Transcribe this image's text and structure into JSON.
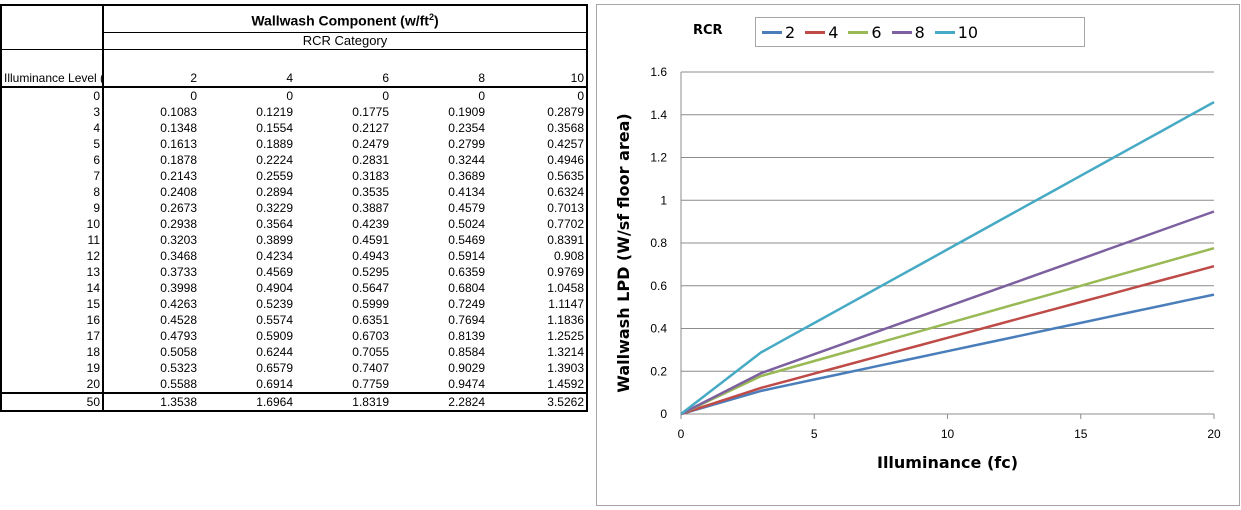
{
  "table": {
    "title": "Wallwash Component (w/ft",
    "title_sup": "2",
    "title_close": ")",
    "subtitle": "RCR Category",
    "level_header": "Illuminance Level (fc)",
    "columns": [
      "2",
      "4",
      "6",
      "8",
      "10"
    ],
    "rows": [
      {
        "level": "0",
        "values": [
          "0",
          "0",
          "0",
          "0",
          "0"
        ]
      },
      {
        "level": "3",
        "values": [
          "0.1083",
          "0.1219",
          "0.1775",
          "0.1909",
          "0.2879"
        ]
      },
      {
        "level": "4",
        "values": [
          "0.1348",
          "0.1554",
          "0.2127",
          "0.2354",
          "0.3568"
        ]
      },
      {
        "level": "5",
        "values": [
          "0.1613",
          "0.1889",
          "0.2479",
          "0.2799",
          "0.4257"
        ]
      },
      {
        "level": "6",
        "values": [
          "0.1878",
          "0.2224",
          "0.2831",
          "0.3244",
          "0.4946"
        ]
      },
      {
        "level": "7",
        "values": [
          "0.2143",
          "0.2559",
          "0.3183",
          "0.3689",
          "0.5635"
        ]
      },
      {
        "level": "8",
        "values": [
          "0.2408",
          "0.2894",
          "0.3535",
          "0.4134",
          "0.6324"
        ]
      },
      {
        "level": "9",
        "values": [
          "0.2673",
          "0.3229",
          "0.3887",
          "0.4579",
          "0.7013"
        ]
      },
      {
        "level": "10",
        "values": [
          "0.2938",
          "0.3564",
          "0.4239",
          "0.5024",
          "0.7702"
        ]
      },
      {
        "level": "11",
        "values": [
          "0.3203",
          "0.3899",
          "0.4591",
          "0.5469",
          "0.8391"
        ]
      },
      {
        "level": "12",
        "values": [
          "0.3468",
          "0.4234",
          "0.4943",
          "0.5914",
          "0.908"
        ]
      },
      {
        "level": "13",
        "values": [
          "0.3733",
          "0.4569",
          "0.5295",
          "0.6359",
          "0.9769"
        ]
      },
      {
        "level": "14",
        "values": [
          "0.3998",
          "0.4904",
          "0.5647",
          "0.6804",
          "1.0458"
        ]
      },
      {
        "level": "15",
        "values": [
          "0.4263",
          "0.5239",
          "0.5999",
          "0.7249",
          "1.1147"
        ]
      },
      {
        "level": "16",
        "values": [
          "0.4528",
          "0.5574",
          "0.6351",
          "0.7694",
          "1.1836"
        ]
      },
      {
        "level": "17",
        "values": [
          "0.4793",
          "0.5909",
          "0.6703",
          "0.8139",
          "1.2525"
        ]
      },
      {
        "level": "18",
        "values": [
          "0.5058",
          "0.6244",
          "0.7055",
          "0.8584",
          "1.3214"
        ]
      },
      {
        "level": "19",
        "values": [
          "0.5323",
          "0.6579",
          "0.7407",
          "0.9029",
          "1.3903"
        ]
      },
      {
        "level": "20",
        "values": [
          "0.5588",
          "0.6914",
          "0.7759",
          "0.9474",
          "1.4592"
        ]
      },
      {
        "level": "50",
        "values": [
          "1.3538",
          "1.6964",
          "1.8319",
          "2.2824",
          "3.5262"
        ]
      }
    ]
  },
  "chart_data": {
    "type": "line",
    "title": "",
    "xlabel": "Illuminance (fc)",
    "ylabel": "Wallwash  LPD (W/sf floor area)",
    "xlim": [
      0,
      20
    ],
    "ylim": [
      0,
      1.6
    ],
    "xticks": [
      "0",
      "5",
      "10",
      "15",
      "20"
    ],
    "yticks": [
      "0",
      "0.2",
      "0.4",
      "0.6",
      "0.8",
      "1",
      "1.2",
      "1.4",
      "1.6"
    ],
    "grid": "horizontal",
    "legend_title": "RCR",
    "legend_position": "top",
    "x": [
      0,
      3,
      4,
      5,
      6,
      7,
      8,
      9,
      10,
      11,
      12,
      13,
      14,
      15,
      16,
      17,
      18,
      19,
      20
    ],
    "series": [
      {
        "name": "2",
        "color": "#4a7ebb",
        "values": [
          0,
          0.1083,
          0.1348,
          0.1613,
          0.1878,
          0.2143,
          0.2408,
          0.2673,
          0.2938,
          0.3203,
          0.3468,
          0.3733,
          0.3998,
          0.4263,
          0.4528,
          0.4793,
          0.5058,
          0.5323,
          0.5588
        ]
      },
      {
        "name": "4",
        "color": "#be4b48",
        "values": [
          0,
          0.1219,
          0.1554,
          0.1889,
          0.2224,
          0.2559,
          0.2894,
          0.3229,
          0.3564,
          0.3899,
          0.4234,
          0.4569,
          0.4904,
          0.5239,
          0.5574,
          0.5909,
          0.6244,
          0.6579,
          0.6914
        ]
      },
      {
        "name": "6",
        "color": "#98b954",
        "values": [
          0,
          0.1775,
          0.2127,
          0.2479,
          0.2831,
          0.3183,
          0.3535,
          0.3887,
          0.4239,
          0.4591,
          0.4943,
          0.5295,
          0.5647,
          0.5999,
          0.6351,
          0.6703,
          0.7055,
          0.7407,
          0.7759
        ]
      },
      {
        "name": "8",
        "color": "#7d60a0",
        "values": [
          0,
          0.1909,
          0.2354,
          0.2799,
          0.3244,
          0.3689,
          0.4134,
          0.4579,
          0.5024,
          0.5469,
          0.5914,
          0.6359,
          0.6804,
          0.7249,
          0.7694,
          0.8139,
          0.8584,
          0.9029,
          0.9474
        ]
      },
      {
        "name": "10",
        "color": "#46aac5",
        "values": [
          0,
          0.2879,
          0.3568,
          0.4257,
          0.4946,
          0.5635,
          0.6324,
          0.7013,
          0.7702,
          0.8391,
          0.908,
          0.9769,
          1.0458,
          1.1147,
          1.1836,
          1.2525,
          1.3214,
          1.3903,
          1.4592
        ]
      }
    ]
  }
}
